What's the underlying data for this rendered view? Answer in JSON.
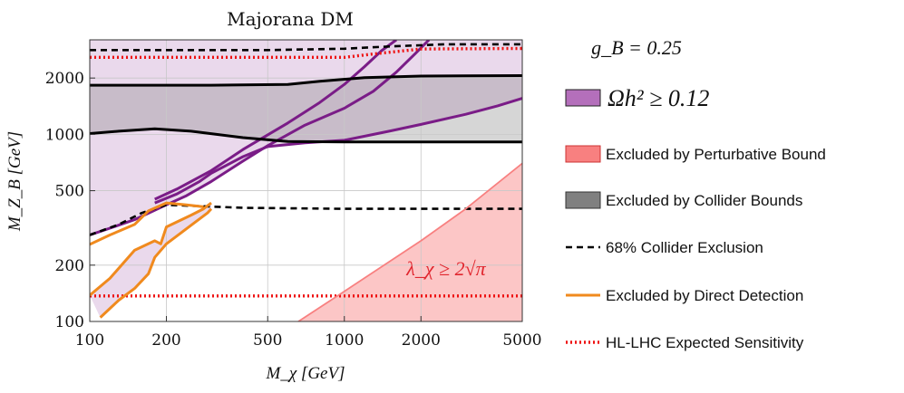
{
  "chart_data": {
    "type": "line",
    "title": "Majorana DM",
    "xlabel": "M_χ [GeV]",
    "ylabel": "M_Z_B [GeV]",
    "xscale": "log",
    "yscale": "log",
    "xlim": [
      100,
      5000
    ],
    "ylim": [
      100,
      3200
    ],
    "x_ticks": [
      100,
      200,
      500,
      1000,
      2000,
      5000
    ],
    "x_tick_labels": [
      "100",
      "200",
      "500",
      "1000",
      "2000",
      "5000"
    ],
    "y_ticks": [
      100,
      200,
      500,
      1000,
      2000
    ],
    "y_tick_labels": [
      "100",
      "200",
      "500",
      "1000",
      "2000"
    ],
    "grid": true,
    "parameter_label": "g_B = 0.25",
    "annotation": "λ_χ ≥ 2√π",
    "colors": {
      "relic": "#b46fbb",
      "relic_fill": "#e6d2e9",
      "relic_line": "#7a1c87",
      "collider": "#555555",
      "collider_fill": "#808080",
      "perturbative": "#f88080",
      "direct_detection": "#f08a1e",
      "hl_lhc": "#ee1111"
    },
    "series": [
      {
        "name": "Ωh² ≥ 0.12 lower-left region boundary",
        "role": "relic_boundary",
        "points": [
          [
            100,
            290
          ],
          [
            120,
            315
          ],
          [
            150,
            350
          ],
          [
            200,
            420
          ],
          [
            240,
            470
          ],
          [
            300,
            560
          ],
          [
            400,
            720
          ],
          [
            500,
            870
          ],
          [
            700,
            1120
          ],
          [
            1000,
            1380
          ],
          [
            1300,
            1700
          ],
          [
            1600,
            2150
          ],
          [
            1900,
            2700
          ],
          [
            2150,
            3200
          ]
        ]
      },
      {
        "name": "Ωh² ≥ 0.12 upper band lower boundary",
        "role": "relic_boundary",
        "points": [
          [
            180,
            430
          ],
          [
            220,
            480
          ],
          [
            270,
            560
          ],
          [
            300,
            620
          ],
          [
            400,
            760
          ],
          [
            500,
            860
          ],
          [
            700,
            900
          ],
          [
            1000,
            930
          ],
          [
            1500,
            1040
          ],
          [
            2000,
            1130
          ],
          [
            3000,
            1280
          ],
          [
            4000,
            1420
          ],
          [
            5000,
            1560
          ]
        ]
      },
      {
        "name": "Ωh² ≥ 0.12 upper band upper boundary",
        "role": "relic_boundary",
        "points": [
          [
            180,
            450
          ],
          [
            220,
            510
          ],
          [
            300,
            640
          ],
          [
            400,
            830
          ],
          [
            600,
            1150
          ],
          [
            800,
            1480
          ],
          [
            1000,
            1850
          ],
          [
            1200,
            2300
          ],
          [
            1400,
            2800
          ],
          [
            1600,
            3200
          ]
        ]
      },
      {
        "name": "Collider bound lower edge",
        "role": "collider",
        "points": [
          [
            100,
            1010
          ],
          [
            130,
            1040
          ],
          [
            180,
            1070
          ],
          [
            250,
            1040
          ],
          [
            400,
            960
          ],
          [
            600,
            915
          ],
          [
            1000,
            910
          ],
          [
            2000,
            910
          ],
          [
            5000,
            910
          ]
        ]
      },
      {
        "name": "Collider bound upper edge",
        "role": "collider",
        "points": [
          [
            100,
            1830
          ],
          [
            300,
            1830
          ],
          [
            600,
            1850
          ],
          [
            800,
            1920
          ],
          [
            1200,
            2010
          ],
          [
            2000,
            2050
          ],
          [
            5000,
            2060
          ]
        ]
      },
      {
        "name": "68% Collider Exclusion (upper)",
        "role": "collider68",
        "points": [
          [
            100,
            2820
          ],
          [
            500,
            2820
          ],
          [
            1000,
            2870
          ],
          [
            1500,
            2950
          ],
          [
            2500,
            3030
          ],
          [
            5000,
            3030
          ]
        ]
      },
      {
        "name": "68% Collider Exclusion (lower)",
        "role": "collider68",
        "points": [
          [
            100,
            290
          ],
          [
            130,
            330
          ],
          [
            160,
            380
          ],
          [
            200,
            420
          ],
          [
            250,
            415
          ],
          [
            400,
            405
          ],
          [
            1000,
            400
          ],
          [
            5000,
            400
          ]
        ]
      },
      {
        "name": "HL-LHC Expected Sensitivity (upper)",
        "role": "hllhc",
        "points": [
          [
            100,
            2580
          ],
          [
            1000,
            2580
          ],
          [
            1400,
            2720
          ],
          [
            2000,
            2860
          ],
          [
            5000,
            2880
          ]
        ]
      },
      {
        "name": "HL-LHC Expected Sensitivity (lower)",
        "role": "hllhc",
        "points": [
          [
            100,
            137
          ],
          [
            5000,
            137
          ]
        ]
      },
      {
        "name": "Excluded by Direct Detection (upper branch)",
        "role": "dd",
        "points": [
          [
            100,
            138
          ],
          [
            120,
            170
          ],
          [
            150,
            240
          ],
          [
            180,
            270
          ],
          [
            190,
            260
          ],
          [
            200,
            320
          ],
          [
            250,
            370
          ],
          [
            280,
            400
          ],
          [
            300,
            430
          ]
        ]
      },
      {
        "name": "Excluded by Direct Detection (lower branch)",
        "role": "dd",
        "points": [
          [
            100,
            258
          ],
          [
            120,
            290
          ],
          [
            150,
            330
          ],
          [
            170,
            390
          ],
          [
            200,
            430
          ],
          [
            240,
            420
          ],
          [
            280,
            410
          ]
        ]
      },
      {
        "name": "Excluded by Direct Detection (left branch)",
        "role": "dd",
        "points": [
          [
            110,
            105
          ],
          [
            130,
            130
          ],
          [
            150,
            150
          ],
          [
            170,
            180
          ],
          [
            180,
            220
          ],
          [
            200,
            260
          ],
          [
            230,
            300
          ],
          [
            260,
            340
          ],
          [
            290,
            380
          ],
          [
            300,
            400
          ]
        ]
      },
      {
        "name": "Perturbative bound (λ_χ = 2√π)",
        "role": "perturbative",
        "points": [
          [
            660,
            100
          ],
          [
            1000,
            145
          ],
          [
            2000,
            270
          ],
          [
            3000,
            400
          ],
          [
            5000,
            700
          ]
        ]
      }
    ],
    "legend": {
      "placement": "right",
      "entries": [
        {
          "label": "Ωh² ≥ 0.12",
          "kind": "patch",
          "style": "relic"
        },
        {
          "label": "Excluded by Perturbative Bound",
          "kind": "patch",
          "style": "perturbative"
        },
        {
          "label": "Excluded by Collider Bounds",
          "kind": "patch",
          "style": "collider"
        },
        {
          "label": "68% Collider Exclusion",
          "kind": "dashed",
          "style": "collider68"
        },
        {
          "label": "Excluded by Direct Detection",
          "kind": "solid",
          "style": "dd"
        },
        {
          "label": "HL-LHC Expected Sensitivity",
          "kind": "dotted",
          "style": "hllhc"
        }
      ]
    }
  }
}
